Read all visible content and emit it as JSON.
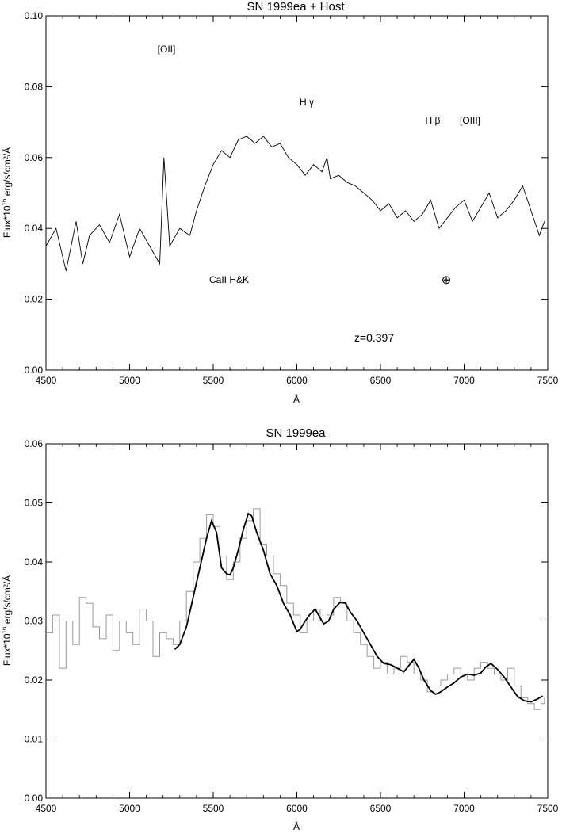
{
  "chart_data": [
    {
      "type": "line",
      "title": "SN 1999ea + Host",
      "xlabel": "Å",
      "ylabel_main": "Flux*10",
      "ylabel_exp": "16",
      "ylabel_rest": " erg/s/cm²/Å",
      "xlim": [
        4500,
        7500
      ],
      "ylim": [
        0.0,
        0.1
      ],
      "xticks": [
        4500,
        5000,
        5500,
        6000,
        6500,
        7000,
        7500
      ],
      "yticks": [
        "0.00",
        "0.02",
        "0.04",
        "0.06",
        "0.08",
        "0.10"
      ],
      "annotations": {
        "oii": "[OII]",
        "hgamma": "H γ",
        "hbeta": "H β",
        "oiii": "[OIII]",
        "caii": "CaII H&K",
        "telluric": "⊕",
        "redshift": "z=0.397"
      },
      "series": [
        {
          "style": "thin black spectrum",
          "x": [
            4500,
            4560,
            4620,
            4680,
            4720,
            4760,
            4820,
            4880,
            4940,
            5000,
            5060,
            5120,
            5180,
            5205,
            5240,
            5300,
            5360,
            5400,
            5450,
            5500,
            5550,
            5600,
            5650,
            5700,
            5750,
            5800,
            5850,
            5900,
            5950,
            6000,
            6050,
            6100,
            6150,
            6180,
            6200,
            6250,
            6300,
            6350,
            6400,
            6450,
            6500,
            6550,
            6600,
            6650,
            6700,
            6750,
            6800,
            6850,
            6900,
            6950,
            7000,
            7050,
            7100,
            7150,
            7200,
            7250,
            7300,
            7350,
            7400,
            7450,
            7480
          ],
          "y": [
            0.035,
            0.04,
            0.028,
            0.042,
            0.03,
            0.038,
            0.041,
            0.036,
            0.044,
            0.032,
            0.04,
            0.035,
            0.03,
            0.06,
            0.035,
            0.04,
            0.038,
            0.045,
            0.052,
            0.058,
            0.062,
            0.06,
            0.065,
            0.066,
            0.064,
            0.066,
            0.063,
            0.064,
            0.06,
            0.058,
            0.055,
            0.058,
            0.056,
            0.06,
            0.054,
            0.055,
            0.053,
            0.052,
            0.05,
            0.048,
            0.045,
            0.047,
            0.043,
            0.045,
            0.042,
            0.044,
            0.048,
            0.04,
            0.043,
            0.046,
            0.048,
            0.042,
            0.046,
            0.05,
            0.043,
            0.045,
            0.048,
            0.052,
            0.045,
            0.038,
            0.042
          ]
        }
      ]
    },
    {
      "type": "line",
      "title": "SN 1999ea",
      "xlabel": "Å",
      "ylabel_main": "Flux*10",
      "ylabel_exp": "16",
      "ylabel_rest": " erg/s/cm²/Å",
      "xlim": [
        4500,
        7500
      ],
      "ylim": [
        0.0,
        0.06
      ],
      "xticks": [
        4500,
        5000,
        5500,
        6000,
        6500,
        7000,
        7500
      ],
      "yticks": [
        "0.00",
        "0.01",
        "0.02",
        "0.03",
        "0.04",
        "0.05",
        "0.06"
      ],
      "series": [
        {
          "style": "grey histogram (observed)",
          "x": [
            4500,
            4540,
            4580,
            4620,
            4660,
            4700,
            4740,
            4780,
            4820,
            4860,
            4900,
            4940,
            4980,
            5020,
            5060,
            5100,
            5140,
            5180,
            5220,
            5260,
            5300,
            5340,
            5380,
            5420,
            5460,
            5500,
            5540,
            5580,
            5620,
            5660,
            5700,
            5740,
            5780,
            5820,
            5860,
            5900,
            5940,
            5980,
            6020,
            6060,
            6100,
            6140,
            6180,
            6220,
            6260,
            6300,
            6340,
            6380,
            6420,
            6460,
            6500,
            6540,
            6580,
            6620,
            6660,
            6700,
            6740,
            6780,
            6820,
            6860,
            6900,
            6940,
            6980,
            7020,
            7060,
            7100,
            7140,
            7180,
            7220,
            7260,
            7300,
            7340,
            7380,
            7420,
            7460,
            7480
          ],
          "y": [
            0.028,
            0.031,
            0.022,
            0.03,
            0.026,
            0.034,
            0.033,
            0.029,
            0.027,
            0.031,
            0.025,
            0.03,
            0.028,
            0.026,
            0.032,
            0.03,
            0.024,
            0.028,
            0.027,
            0.026,
            0.03,
            0.035,
            0.04,
            0.044,
            0.048,
            0.046,
            0.041,
            0.037,
            0.04,
            0.044,
            0.047,
            0.049,
            0.043,
            0.041,
            0.038,
            0.036,
            0.033,
            0.031,
            0.028,
            0.03,
            0.032,
            0.03,
            0.031,
            0.034,
            0.033,
            0.03,
            0.028,
            0.026,
            0.024,
            0.022,
            0.023,
            0.021,
            0.022,
            0.024,
            0.023,
            0.021,
            0.02,
            0.018,
            0.019,
            0.02,
            0.021,
            0.022,
            0.021,
            0.02,
            0.022,
            0.023,
            0.022,
            0.021,
            0.02,
            0.022,
            0.019,
            0.017,
            0.016,
            0.015,
            0.016,
            0.017
          ]
        },
        {
          "style": "black smoothed fit",
          "x": [
            5270,
            5300,
            5340,
            5380,
            5420,
            5460,
            5490,
            5520,
            5550,
            5580,
            5600,
            5620,
            5650,
            5680,
            5710,
            5730,
            5760,
            5800,
            5840,
            5880,
            5920,
            5960,
            6000,
            6020,
            6050,
            6080,
            6110,
            6130,
            6160,
            6190,
            6220,
            6260,
            6290,
            6320,
            6360,
            6400,
            6440,
            6480,
            6520,
            6560,
            6600,
            6640,
            6680,
            6700,
            6730,
            6760,
            6800,
            6830,
            6860,
            6900,
            6940,
            6980,
            7020,
            7060,
            7100,
            7130,
            7160,
            7200,
            7240,
            7280,
            7320,
            7360,
            7400,
            7440,
            7470
          ],
          "y": [
            0.0252,
            0.026,
            0.029,
            0.034,
            0.039,
            0.044,
            0.047,
            0.045,
            0.039,
            0.038,
            0.0378,
            0.039,
            0.042,
            0.0455,
            0.0482,
            0.0478,
            0.045,
            0.042,
            0.038,
            0.036,
            0.033,
            0.031,
            0.0282,
            0.0286,
            0.03,
            0.0312,
            0.032,
            0.031,
            0.0295,
            0.03,
            0.032,
            0.0332,
            0.033,
            0.0315,
            0.03,
            0.028,
            0.026,
            0.024,
            0.0228,
            0.0226,
            0.022,
            0.0214,
            0.0228,
            0.0235,
            0.022,
            0.02,
            0.0182,
            0.0176,
            0.018,
            0.0188,
            0.0195,
            0.0205,
            0.021,
            0.0208,
            0.0212,
            0.0222,
            0.0228,
            0.0218,
            0.0205,
            0.0188,
            0.0172,
            0.0165,
            0.0163,
            0.0168,
            0.0173
          ]
        }
      ]
    }
  ]
}
